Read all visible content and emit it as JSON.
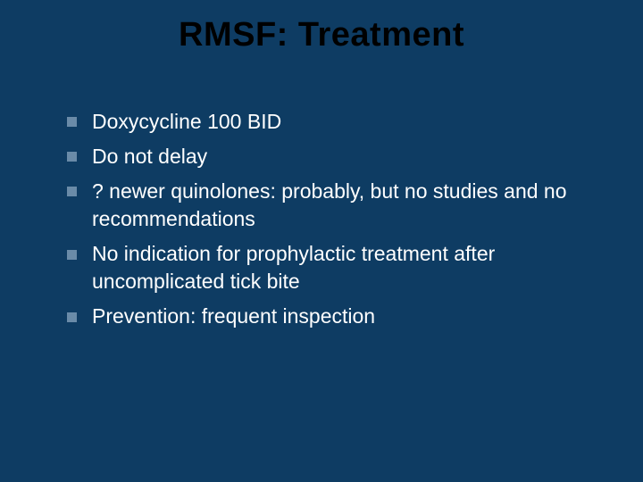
{
  "slide": {
    "title": "RMSF: Treatment",
    "title_color": "#000000",
    "title_fontsize": 38,
    "background_color": "#0e3c63",
    "body_text_color": "#ffffff",
    "body_fontsize": 23,
    "bullet_color": "#6a8ba8",
    "bullet_size": 11,
    "bullets": [
      "Doxycycline 100 BID",
      "Do not delay",
      "? newer quinolones:  probably, but no studies and no recommendations",
      "No indication for prophylactic treatment after uncomplicated tick bite",
      "Prevention: frequent inspection"
    ]
  }
}
